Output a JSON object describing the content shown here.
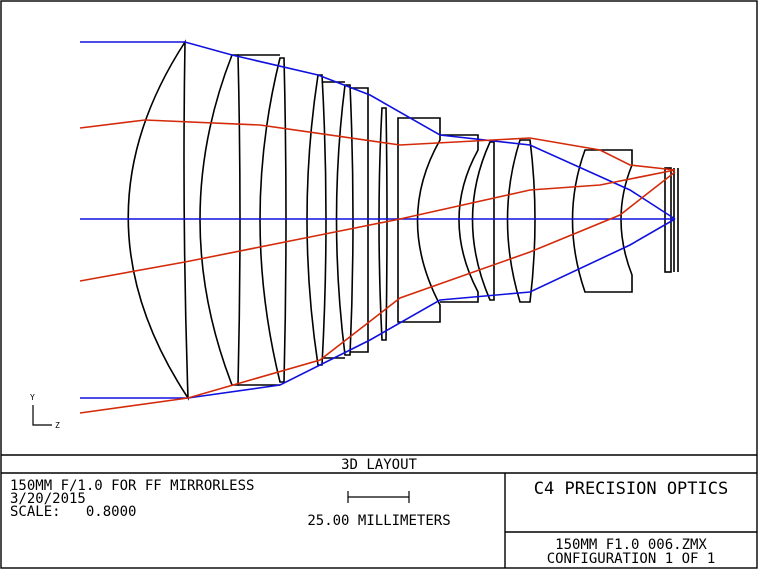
{
  "diagram": {
    "title": "3D LAYOUT",
    "axis_labels": {
      "y": "Y",
      "z": "Z"
    }
  },
  "info": {
    "description": "150MM F/1.0 FOR FF MIRRORLESS",
    "date": "3/20/2015",
    "scale": "SCALE:   0.8000",
    "scale_bar": "25.00 MILLIMETERS",
    "company": "C4 PRECISION OPTICS",
    "file": "150MM F1.0 006.ZMX",
    "configuration": "CONFIGURATION 1 OF 1"
  }
}
